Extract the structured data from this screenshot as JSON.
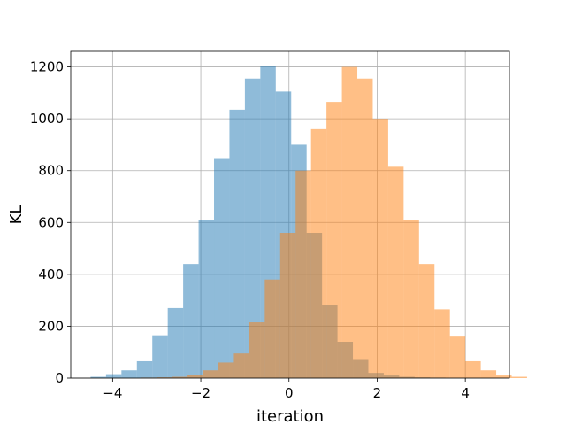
{
  "chart_data": {
    "type": "bar",
    "title": "",
    "xlabel": "iteration",
    "ylabel": "KL",
    "xlim": [
      -4.95,
      5.0
    ],
    "ylim": [
      0,
      1260
    ],
    "grid": true,
    "legend": "none",
    "xticks": [
      -4,
      -2,
      0,
      2,
      4
    ],
    "xtick_labels": [
      "−4",
      "−2",
      "0",
      "2",
      "4"
    ],
    "yticks": [
      0,
      200,
      400,
      600,
      800,
      1000,
      1200
    ],
    "ytick_labels": [
      "0",
      "200",
      "400",
      "600",
      "800",
      "1000",
      "1200"
    ],
    "series": [
      {
        "color": "#1f77b4",
        "opacity": 0.5,
        "bin_start": -4.5,
        "bin_width": 0.35,
        "values": [
          5,
          15,
          30,
          65,
          165,
          270,
          440,
          610,
          845,
          1035,
          1155,
          1205,
          1105,
          900,
          560,
          280,
          140,
          70,
          20,
          10,
          5,
          3,
          2
        ]
      },
      {
        "color": "#ff7f0e",
        "opacity": 0.5,
        "bin_start": -3.35,
        "bin_width": 0.35,
        "values": [
          2,
          3,
          5,
          12,
          30,
          60,
          95,
          215,
          380,
          560,
          800,
          960,
          1065,
          1200,
          1155,
          1000,
          815,
          610,
          440,
          265,
          160,
          65,
          30,
          10,
          5
        ]
      }
    ]
  }
}
